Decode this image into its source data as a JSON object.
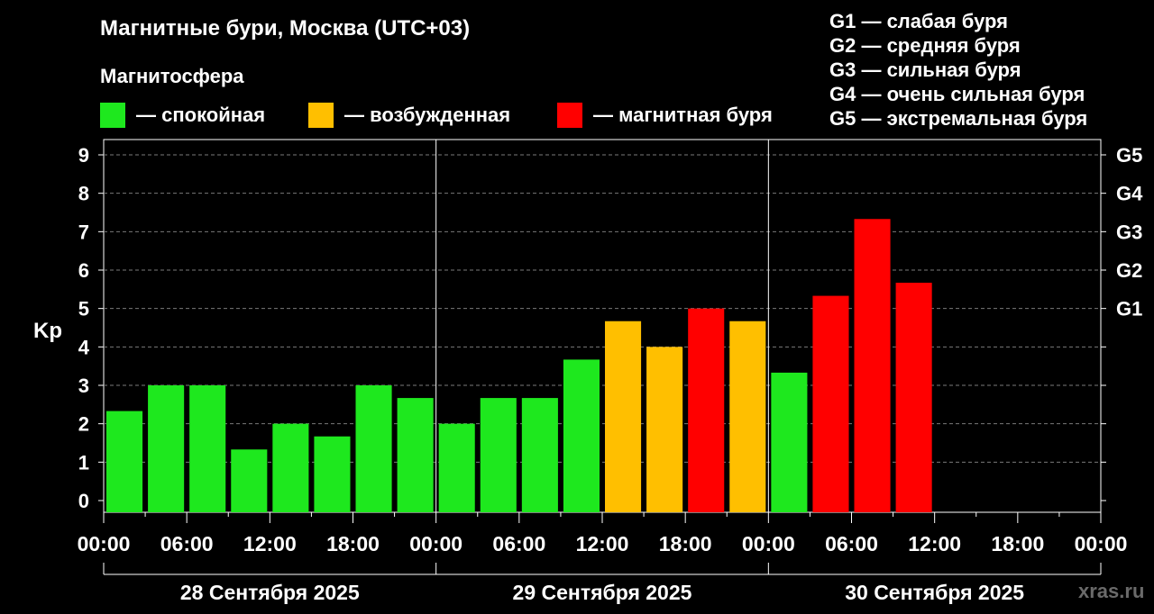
{
  "header": {
    "title": "Магнитные бури, Москва (UTC+03)",
    "subtitle": "Магнитосфера"
  },
  "legend": [
    {
      "label": "— спокойная",
      "color": "#1ee81e"
    },
    {
      "label": "— возбужденная",
      "color": "#ffbf00"
    },
    {
      "label": "— магнитная буря",
      "color": "#ff0000"
    }
  ],
  "g_scale": [
    "G1 — слабая буря",
    "G2 — средняя буря",
    "G3 — сильная буря",
    "G4 — очень сильная буря",
    "G5 — экстремальная буря"
  ],
  "watermark": "xras.ru",
  "chart_data": {
    "type": "bar",
    "ylabel": "Kp",
    "ylim": [
      0,
      9
    ],
    "y_ticks": [
      "0",
      "1",
      "2",
      "3",
      "4",
      "5",
      "6",
      "7",
      "8",
      "9"
    ],
    "right_ticks": [
      {
        "value": 5,
        "label": "G1"
      },
      {
        "value": 6,
        "label": "G2"
      },
      {
        "value": 7,
        "label": "G3"
      },
      {
        "value": 8,
        "label": "G4"
      },
      {
        "value": 9,
        "label": "G5"
      }
    ],
    "grid": true,
    "x_tick_labels": [
      "00:00",
      "06:00",
      "12:00",
      "18:00",
      "00:00",
      "06:00",
      "12:00",
      "18:00",
      "00:00",
      "06:00",
      "12:00",
      "18:00",
      "00:00"
    ],
    "days": [
      "28 Сентября 2025",
      "29 Сентября 2025",
      "30 Сентября 2025"
    ],
    "bars": [
      {
        "start": "28.09 00:00",
        "value": 2.33,
        "level": "спокойная"
      },
      {
        "start": "28.09 03:00",
        "value": 3.0,
        "level": "спокойная"
      },
      {
        "start": "28.09 06:00",
        "value": 3.0,
        "level": "спокойная"
      },
      {
        "start": "28.09 09:00",
        "value": 1.33,
        "level": "спокойная"
      },
      {
        "start": "28.09 12:00",
        "value": 2.0,
        "level": "спокойная"
      },
      {
        "start": "28.09 15:00",
        "value": 1.67,
        "level": "спокойная"
      },
      {
        "start": "28.09 18:00",
        "value": 3.0,
        "level": "спокойная"
      },
      {
        "start": "28.09 21:00",
        "value": 2.67,
        "level": "спокойная"
      },
      {
        "start": "29.09 00:00",
        "value": 2.0,
        "level": "спокойная"
      },
      {
        "start": "29.09 03:00",
        "value": 2.67,
        "level": "спокойная"
      },
      {
        "start": "29.09 06:00",
        "value": 2.67,
        "level": "спокойная"
      },
      {
        "start": "29.09 09:00",
        "value": 3.67,
        "level": "спокойная"
      },
      {
        "start": "29.09 12:00",
        "value": 4.67,
        "level": "возбужденная"
      },
      {
        "start": "29.09 15:00",
        "value": 4.0,
        "level": "возбужденная"
      },
      {
        "start": "29.09 18:00",
        "value": 5.0,
        "level": "магнитная буря"
      },
      {
        "start": "29.09 21:00",
        "value": 4.67,
        "level": "возбужденная"
      },
      {
        "start": "30.09 00:00",
        "value": 3.33,
        "level": "спокойная"
      },
      {
        "start": "30.09 03:00",
        "value": 5.33,
        "level": "магнитная буря"
      },
      {
        "start": "30.09 06:00",
        "value": 7.33,
        "level": "магнитная буря"
      },
      {
        "start": "30.09 09:00",
        "value": 5.67,
        "level": "магнитная буря"
      }
    ]
  }
}
